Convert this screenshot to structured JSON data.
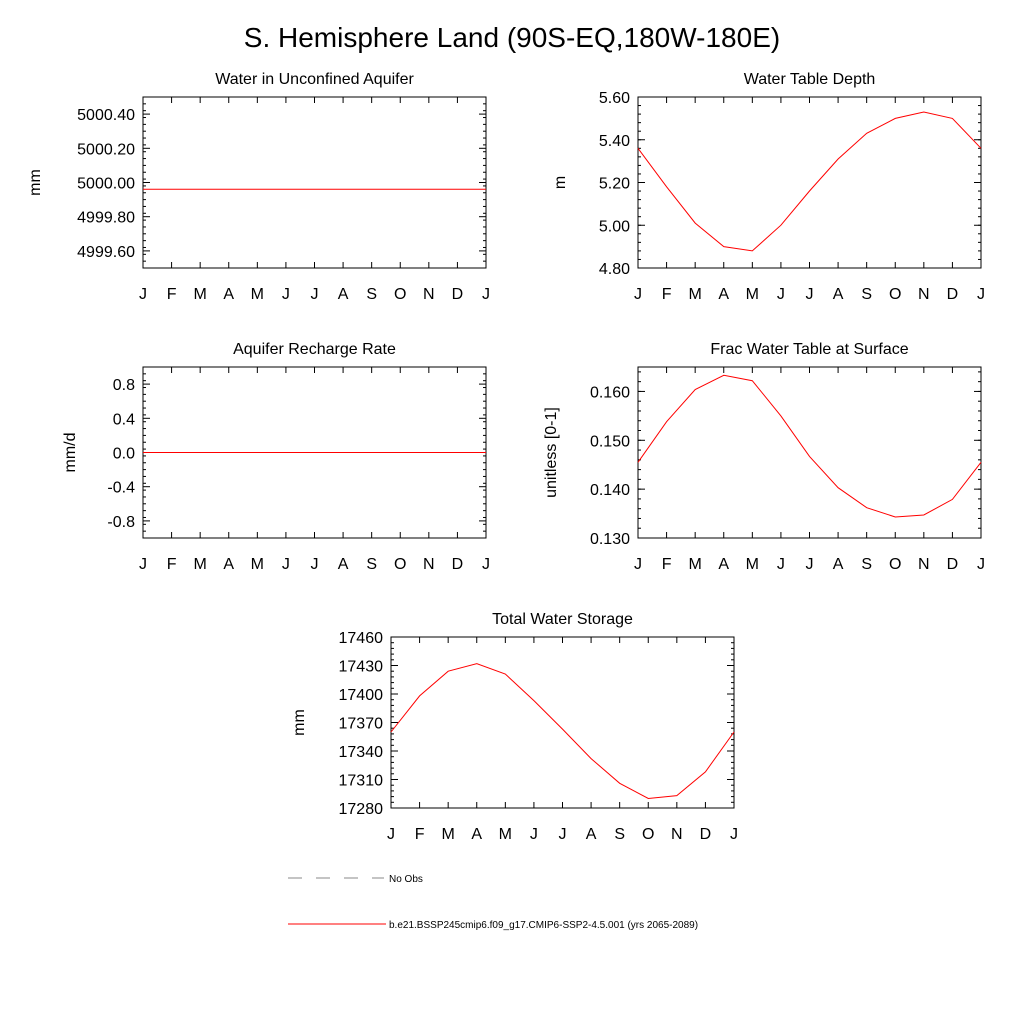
{
  "page": {
    "title": "S. Hemisphere Land (90S-EQ,180W-180E)"
  },
  "legend": {
    "obs_label": "No Obs",
    "model_label": "b.e21.BSSP245cmip6.f09_g17.CMIP6-SSP2-4.5.001 (yrs 2065-2089)",
    "obs_color": "#888888",
    "model_color": "#ff0000"
  },
  "chart_data": [
    {
      "type": "line",
      "title": "Water in Unconfined Aquifer",
      "ylabel": "mm",
      "xlabel": "",
      "x": [
        "J",
        "F",
        "M",
        "A",
        "M",
        "J",
        "J",
        "A",
        "S",
        "O",
        "N",
        "D",
        "J"
      ],
      "ylim": [
        4999.5,
        5000.5
      ],
      "yticks": [
        4999.6,
        4999.8,
        5000.0,
        5000.2,
        5000.4
      ],
      "ytick_labels": [
        "4999.60",
        "4999.80",
        "5000.00",
        "5000.20",
        "5000.40"
      ],
      "series": [
        {
          "color": "#ff0000",
          "values": [
            4999.96,
            4999.96,
            4999.96,
            4999.96,
            4999.96,
            4999.96,
            4999.96,
            4999.96,
            4999.96,
            4999.96,
            4999.96,
            4999.96,
            4999.96
          ]
        }
      ]
    },
    {
      "type": "line",
      "title": "Water Table Depth",
      "ylabel": "m",
      "xlabel": "",
      "x": [
        "J",
        "F",
        "M",
        "A",
        "M",
        "J",
        "J",
        "A",
        "S",
        "O",
        "N",
        "D",
        "J"
      ],
      "ylim": [
        4.8,
        5.6
      ],
      "yticks": [
        4.8,
        5.0,
        5.2,
        5.4,
        5.6
      ],
      "ytick_labels": [
        "4.80",
        "5.00",
        "5.20",
        "5.40",
        "5.60"
      ],
      "series": [
        {
          "color": "#ff0000",
          "values": [
            5.36,
            5.18,
            5.01,
            4.9,
            4.88,
            5.0,
            5.16,
            5.31,
            5.43,
            5.5,
            5.53,
            5.5,
            5.36
          ]
        }
      ]
    },
    {
      "type": "line",
      "title": "Aquifer Recharge Rate",
      "ylabel": "mm/d",
      "xlabel": "",
      "x": [
        "J",
        "F",
        "M",
        "A",
        "M",
        "J",
        "J",
        "A",
        "S",
        "O",
        "N",
        "D",
        "J"
      ],
      "ylim": [
        -1.0,
        1.0
      ],
      "yticks": [
        -0.8,
        -0.4,
        0.0,
        0.4,
        0.8
      ],
      "ytick_labels": [
        "-0.8",
        "-0.4",
        "0.0",
        "0.4",
        "0.8"
      ],
      "series": [
        {
          "color": "#ff0000",
          "values": [
            0,
            0,
            0,
            0,
            0,
            0,
            0,
            0,
            0,
            0,
            0,
            0,
            0
          ]
        }
      ]
    },
    {
      "type": "line",
      "title": "Frac Water Table at Surface",
      "ylabel": "unitless [0-1]",
      "xlabel": "",
      "x": [
        "J",
        "F",
        "M",
        "A",
        "M",
        "J",
        "J",
        "A",
        "S",
        "O",
        "N",
        "D",
        "J"
      ],
      "ylim": [
        0.13,
        0.165
      ],
      "yticks": [
        0.13,
        0.14,
        0.15,
        0.16
      ],
      "ytick_labels": [
        "0.130",
        "0.140",
        "0.150",
        "0.160"
      ],
      "series": [
        {
          "color": "#ff0000",
          "values": [
            0.1455,
            0.1538,
            0.1604,
            0.1633,
            0.1622,
            0.155,
            0.1467,
            0.1403,
            0.1362,
            0.1343,
            0.1347,
            0.1379,
            0.1455
          ]
        }
      ]
    },
    {
      "type": "line",
      "title": "Total Water Storage",
      "ylabel": "mm",
      "xlabel": "",
      "x": [
        "J",
        "F",
        "M",
        "A",
        "M",
        "J",
        "J",
        "A",
        "S",
        "O",
        "N",
        "D",
        "J"
      ],
      "ylim": [
        17280,
        17460
      ],
      "yticks": [
        17280,
        17310,
        17340,
        17370,
        17400,
        17430,
        17460
      ],
      "ytick_labels": [
        "17280",
        "17310",
        "17340",
        "17370",
        "17400",
        "17430",
        "17460"
      ],
      "series": [
        {
          "color": "#ff0000",
          "values": [
            17360,
            17398,
            17424,
            17432,
            17421,
            17393,
            17363,
            17332,
            17306,
            17290,
            17293,
            17318,
            17360
          ]
        }
      ]
    }
  ]
}
